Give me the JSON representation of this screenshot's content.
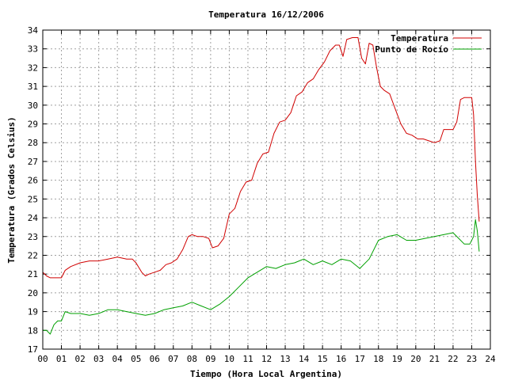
{
  "chart_data": {
    "type": "line",
    "title": "Temperatura 16/12/2006",
    "xlabel": "Tiempo (Hora Local Argentina)",
    "ylabel": "Temperatura (Grados Celsius)",
    "xlim": [
      0,
      24
    ],
    "ylim": [
      17,
      34
    ],
    "x_ticks": [
      "00",
      "01",
      "02",
      "03",
      "04",
      "05",
      "06",
      "07",
      "08",
      "09",
      "10",
      "11",
      "12",
      "13",
      "14",
      "15",
      "16",
      "17",
      "18",
      "19",
      "20",
      "21",
      "22",
      "23",
      "24"
    ],
    "y_ticks": [
      17,
      18,
      19,
      20,
      21,
      22,
      23,
      24,
      25,
      26,
      27,
      28,
      29,
      30,
      31,
      32,
      33,
      34
    ],
    "grid": true,
    "legend_position": "top-right",
    "series": [
      {
        "name": "Temperatura",
        "color": "#d00000",
        "x": [
          0,
          0.2,
          0.4,
          0.6,
          0.8,
          1.0,
          1.2,
          1.5,
          2.0,
          2.5,
          3.0,
          3.5,
          4.0,
          4.5,
          4.8,
          5.0,
          5.3,
          5.5,
          5.7,
          6.0,
          6.3,
          6.6,
          6.9,
          7.2,
          7.5,
          7.8,
          8.0,
          8.3,
          8.6,
          8.9,
          9.1,
          9.4,
          9.7,
          10.0,
          10.3,
          10.6,
          10.9,
          11.2,
          11.5,
          11.8,
          12.1,
          12.4,
          12.7,
          13.0,
          13.3,
          13.6,
          13.9,
          14.2,
          14.5,
          14.8,
          15.1,
          15.4,
          15.7,
          15.9,
          16.1,
          16.3,
          16.6,
          16.9,
          17.1,
          17.3,
          17.5,
          17.7,
          17.9,
          18.1,
          18.3,
          18.6,
          18.9,
          19.2,
          19.5,
          19.8,
          20.1,
          20.4,
          20.7,
          21.0,
          21.3,
          21.5,
          21.8,
          22.0,
          22.2,
          22.4,
          22.6,
          22.8,
          23.0,
          23.1,
          23.2,
          23.3,
          23.4
        ],
        "values": [
          21.1,
          20.9,
          20.8,
          20.8,
          20.8,
          20.8,
          21.2,
          21.4,
          21.6,
          21.7,
          21.7,
          21.8,
          21.9,
          21.8,
          21.8,
          21.6,
          21.1,
          20.9,
          21.0,
          21.1,
          21.2,
          21.5,
          21.6,
          21.8,
          22.3,
          23.0,
          23.1,
          23.0,
          23.0,
          22.9,
          22.4,
          22.5,
          22.9,
          24.2,
          24.5,
          25.4,
          25.9,
          26.0,
          26.9,
          27.4,
          27.5,
          28.5,
          29.1,
          29.2,
          29.6,
          30.5,
          30.7,
          31.2,
          31.4,
          31.9,
          32.3,
          32.9,
          33.2,
          33.2,
          32.6,
          33.5,
          33.6,
          33.6,
          32.5,
          32.2,
          33.3,
          33.2,
          32.0,
          31.0,
          30.8,
          30.6,
          29.8,
          29.0,
          28.5,
          28.4,
          28.2,
          28.2,
          28.1,
          28.0,
          28.1,
          28.7,
          28.7,
          28.7,
          29.1,
          30.3,
          30.4,
          30.4,
          30.4,
          29.5,
          27.0,
          25.2,
          23.8
        ]
      },
      {
        "name": "Punto de Rocío",
        "color": "#00a000",
        "x": [
          0,
          0.2,
          0.4,
          0.6,
          0.8,
          1.0,
          1.2,
          1.5,
          2.0,
          2.5,
          3.0,
          3.5,
          4.0,
          4.5,
          5.0,
          5.5,
          6.0,
          6.5,
          7.0,
          7.5,
          8.0,
          8.5,
          9.0,
          9.5,
          10.0,
          10.5,
          11.0,
          11.5,
          12.0,
          12.5,
          13.0,
          13.5,
          14.0,
          14.5,
          15.0,
          15.5,
          16.0,
          16.5,
          17.0,
          17.5,
          18.0,
          18.5,
          19.0,
          19.5,
          20.0,
          20.5,
          21.0,
          21.5,
          22.0,
          22.3,
          22.6,
          22.9,
          23.1,
          23.2,
          23.3,
          23.4
        ],
        "values": [
          18.0,
          18.0,
          17.8,
          18.3,
          18.5,
          18.5,
          19.0,
          18.9,
          18.9,
          18.8,
          18.9,
          19.1,
          19.1,
          19.0,
          18.9,
          18.8,
          18.9,
          19.1,
          19.2,
          19.3,
          19.5,
          19.3,
          19.1,
          19.4,
          19.8,
          20.3,
          20.8,
          21.1,
          21.4,
          21.3,
          21.5,
          21.6,
          21.8,
          21.5,
          21.7,
          21.5,
          21.8,
          21.7,
          21.3,
          21.8,
          22.8,
          23.0,
          23.1,
          22.8,
          22.8,
          22.9,
          23.0,
          23.1,
          23.2,
          22.9,
          22.6,
          22.6,
          23.0,
          23.9,
          23.3,
          22.2
        ]
      }
    ]
  }
}
